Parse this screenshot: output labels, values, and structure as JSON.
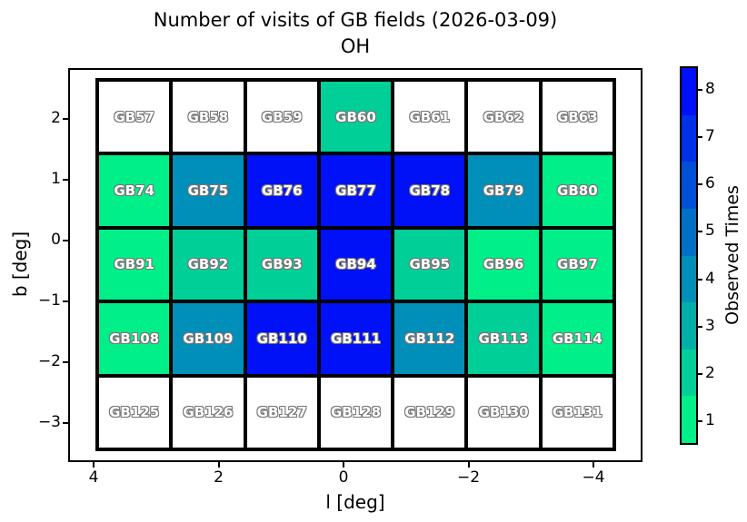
{
  "chart_data": {
    "type": "heatmap",
    "title": "Number of visits of GB fields (2026-03-09)",
    "subtitle": "OH",
    "xlabel": "l [deg]",
    "ylabel": "b [deg]",
    "x_ticks": [
      "4",
      "2",
      "0",
      "−2",
      "−4"
    ],
    "y_ticks": [
      "2",
      "1",
      "0",
      "−1",
      "−2",
      "−3"
    ],
    "xlim": [
      4.4,
      -4.4
    ],
    "ylim": [
      -3.6,
      2.7
    ],
    "grid": "thick-black-cell-borders",
    "colorbar": {
      "label": "Observed Times",
      "position": "right",
      "ticks_top_to_bottom": [
        "8",
        "7",
        "6",
        "5",
        "4",
        "3",
        "2",
        "1"
      ],
      "level_colors_1_to_8": [
        "#00ef88",
        "#00cf98",
        "#00afa8",
        "#008fb8",
        "#0070c7",
        "#0050d7",
        "#0030e7",
        "#0010f7"
      ],
      "unobserved_color": "#ffffff"
    },
    "rows": [
      [
        {
          "name": "GB57",
          "visits": 0
        },
        {
          "name": "GB58",
          "visits": 0
        },
        {
          "name": "GB59",
          "visits": 0
        },
        {
          "name": "GB60",
          "visits": 2
        },
        {
          "name": "GB61",
          "visits": 0
        },
        {
          "name": "GB62",
          "visits": 0
        },
        {
          "name": "GB63",
          "visits": 0
        }
      ],
      [
        {
          "name": "GB74",
          "visits": 1
        },
        {
          "name": "GB75",
          "visits": 4
        },
        {
          "name": "GB76",
          "visits": 8
        },
        {
          "name": "GB77",
          "visits": 8
        },
        {
          "name": "GB78",
          "visits": 8
        },
        {
          "name": "GB79",
          "visits": 4
        },
        {
          "name": "GB80",
          "visits": 1
        }
      ],
      [
        {
          "name": "GB91",
          "visits": 1
        },
        {
          "name": "GB92",
          "visits": 2
        },
        {
          "name": "GB93",
          "visits": 2
        },
        {
          "name": "GB94",
          "visits": 8
        },
        {
          "name": "GB95",
          "visits": 2
        },
        {
          "name": "GB96",
          "visits": 1
        },
        {
          "name": "GB97",
          "visits": 1
        }
      ],
      [
        {
          "name": "GB108",
          "visits": 1
        },
        {
          "name": "GB109",
          "visits": 4
        },
        {
          "name": "GB110",
          "visits": 8
        },
        {
          "name": "GB111",
          "visits": 8
        },
        {
          "name": "GB112",
          "visits": 4
        },
        {
          "name": "GB113",
          "visits": 2
        },
        {
          "name": "GB114",
          "visits": 1
        }
      ],
      [
        {
          "name": "GB125",
          "visits": 0
        },
        {
          "name": "GB126",
          "visits": 0
        },
        {
          "name": "GB127",
          "visits": 0
        },
        {
          "name": "GB128",
          "visits": 0
        },
        {
          "name": "GB129",
          "visits": 0
        },
        {
          "name": "GB130",
          "visits": 0
        },
        {
          "name": "GB131",
          "visits": 0
        }
      ]
    ]
  }
}
